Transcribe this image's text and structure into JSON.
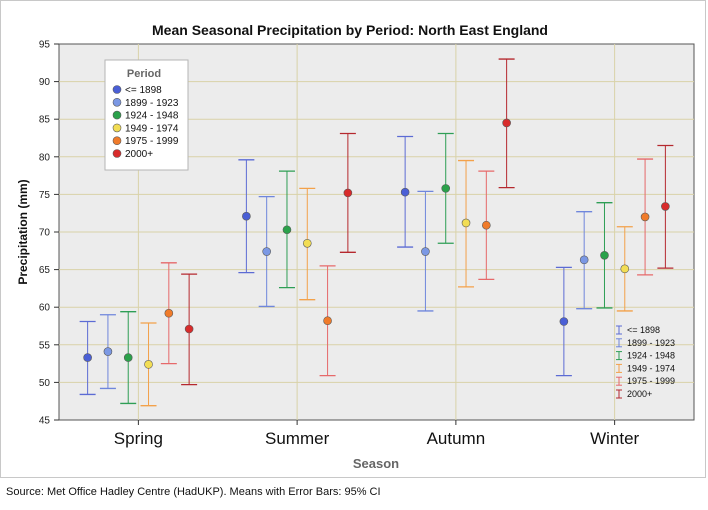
{
  "chart_data": {
    "type": "scatter",
    "subtype": "means-with-error-bars",
    "title": "Mean Seasonal Precipitation by Period: North East England",
    "xlabel": "Season",
    "ylabel": "Precipitation (mm)",
    "ylim": [
      45,
      95
    ],
    "yticks": [
      45,
      50,
      55,
      60,
      65,
      70,
      75,
      80,
      85,
      90,
      95
    ],
    "categories": [
      "Spring",
      "Summer",
      "Autumn",
      "Winter"
    ],
    "grid": true,
    "legend_position": "top-left",
    "legend_title": "Period",
    "series": [
      {
        "name": "<= 1898",
        "color": "#4a5fd6",
        "means": [
          53.3,
          72.1,
          75.3,
          58.1
        ],
        "lower": [
          48.4,
          64.6,
          68.0,
          50.9
        ],
        "upper": [
          58.1,
          79.6,
          82.7,
          65.3
        ]
      },
      {
        "name": "1899 - 1923",
        "color": "#7b98e4",
        "means": [
          54.1,
          67.4,
          67.4,
          66.3
        ],
        "lower": [
          49.2,
          60.1,
          59.5,
          59.8
        ],
        "upper": [
          59.0,
          74.7,
          75.4,
          72.7
        ]
      },
      {
        "name": "1924 - 1948",
        "color": "#2aa14a",
        "means": [
          53.3,
          70.3,
          75.8,
          66.9
        ],
        "lower": [
          47.2,
          62.6,
          68.5,
          59.9
        ],
        "upper": [
          59.4,
          78.1,
          83.1,
          73.9
        ]
      },
      {
        "name": "1949 - 1974",
        "color": "#f2dd54",
        "means": [
          52.4,
          68.5,
          71.2,
          65.1
        ],
        "lower": [
          46.9,
          61.0,
          62.7,
          59.5
        ],
        "upper": [
          57.9,
          75.8,
          79.5,
          70.7
        ]
      },
      {
        "name": "1975 - 1999",
        "color": "#f07b2a",
        "means": [
          59.2,
          58.2,
          70.9,
          72.0
        ],
        "lower": [
          52.5,
          50.9,
          63.7,
          64.3
        ],
        "upper": [
          65.9,
          65.5,
          78.1,
          79.7
        ]
      },
      {
        "name": "2000+",
        "color": "#d82b2b",
        "means": [
          57.1,
          75.2,
          84.5,
          73.4
        ],
        "lower": [
          49.7,
          67.3,
          75.9,
          65.2
        ],
        "upper": [
          64.4,
          83.1,
          93.0,
          81.5
        ]
      }
    ],
    "errorbar_colors": [
      "#5c6bd4",
      "#6f86dc",
      "#2e9e55",
      "#f3a14a",
      "#e6696a",
      "#b5282e"
    ],
    "secondary_legend_position": "bottom-right",
    "annotation": "Source: Met Office Hadley Centre (HadUKP). Means with Error Bars: 95% CI"
  }
}
